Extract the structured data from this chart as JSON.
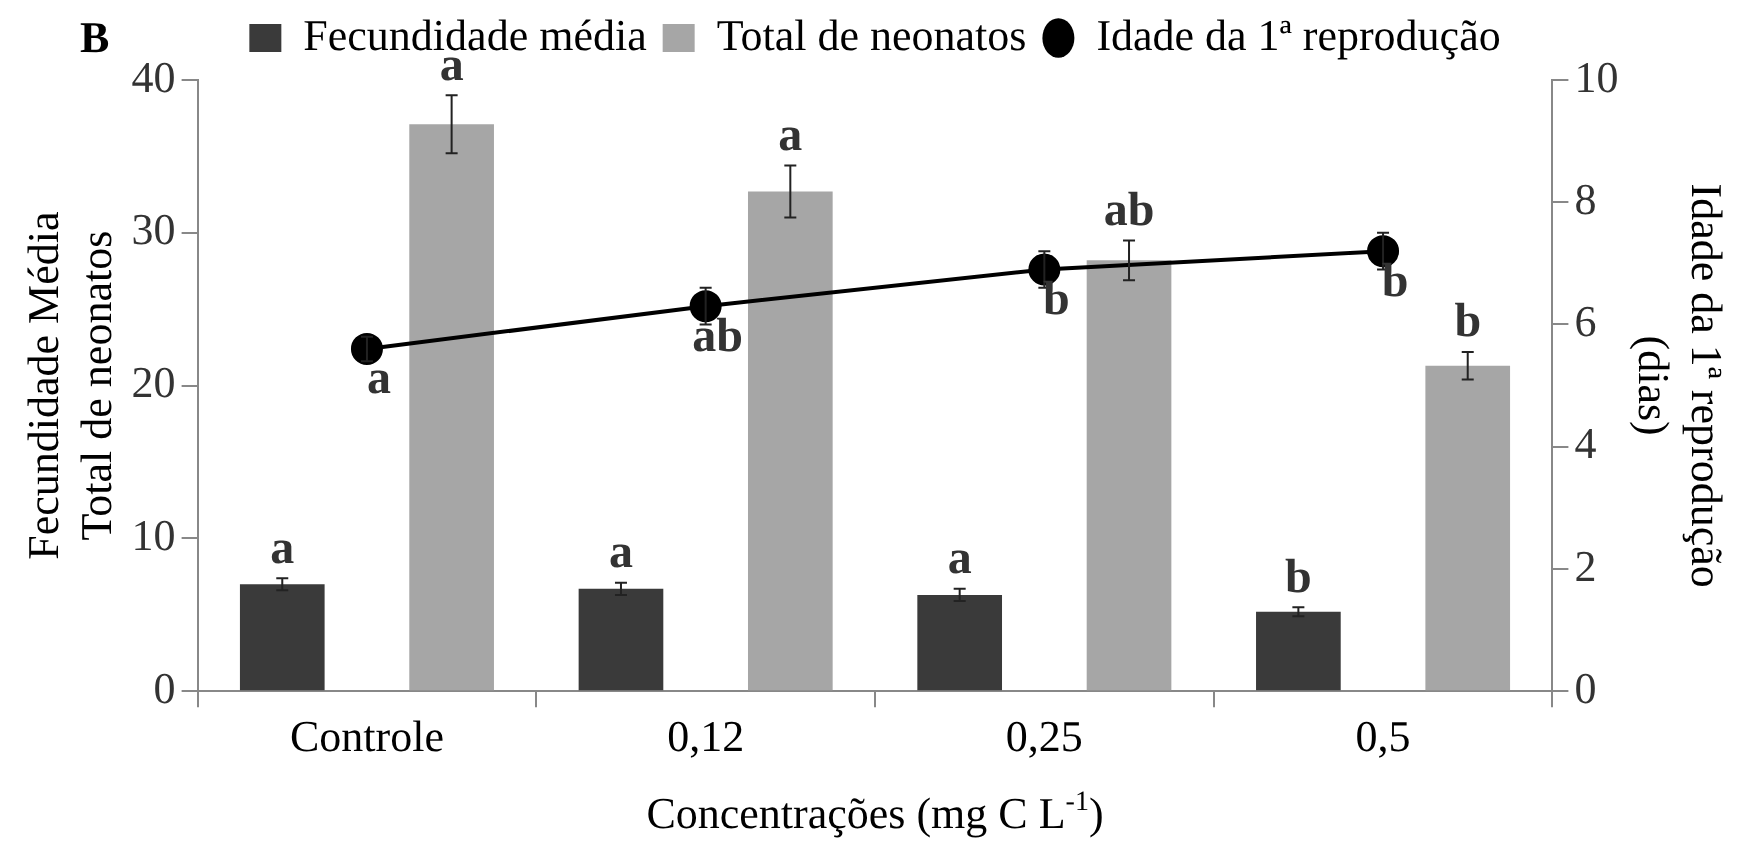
{
  "chart_data": {
    "type": "bar",
    "title": "B",
    "xlabel": "Concentrações (mg C L$^{-1}$)",
    "ylabel": "Fecundidade Média\nTotal de neonatos",
    "y2label": "Idade da 1ª reprodução\n(dias)",
    "categories": [
      "Controle",
      "0,12",
      "0,25",
      "0,5"
    ],
    "series": [
      {
        "name": "Fecundidade média",
        "color": "#3a3a3a",
        "values": [
          7.0,
          6.7,
          6.3,
          5.2
        ],
        "errors": [
          0.4,
          0.4,
          0.4,
          0.3
        ],
        "value_labels": [
          "a",
          "a",
          "a",
          "b"
        ]
      },
      {
        "name": "Total de neonatos",
        "color": "#a6a6a6",
        "values": [
          37.1,
          32.7,
          28.2,
          21.3
        ],
        "errors": [
          1.9,
          1.7,
          1.3,
          0.9
        ],
        "value_labels": [
          "a",
          "a",
          "ab",
          "b"
        ]
      },
      {
        "name": "Idade da 1ª reprodução",
        "color": "#000000",
        "type": "line",
        "axis": "y2",
        "marker": "circle",
        "values": [
          5.6,
          6.3,
          6.9,
          7.2
        ],
        "errors": [
          0.2,
          0.3,
          0.3,
          0.3
        ],
        "value_labels": [
          "a",
          "ab",
          "b",
          "b"
        ]
      }
    ],
    "ylim": [
      0,
      40
    ],
    "yticks": [
      0,
      10,
      20,
      30,
      40
    ],
    "y2lim": [
      0,
      10
    ],
    "y2ticks": [
      0,
      2,
      4,
      6,
      8,
      10
    ],
    "grid": false,
    "legend": "top"
  }
}
